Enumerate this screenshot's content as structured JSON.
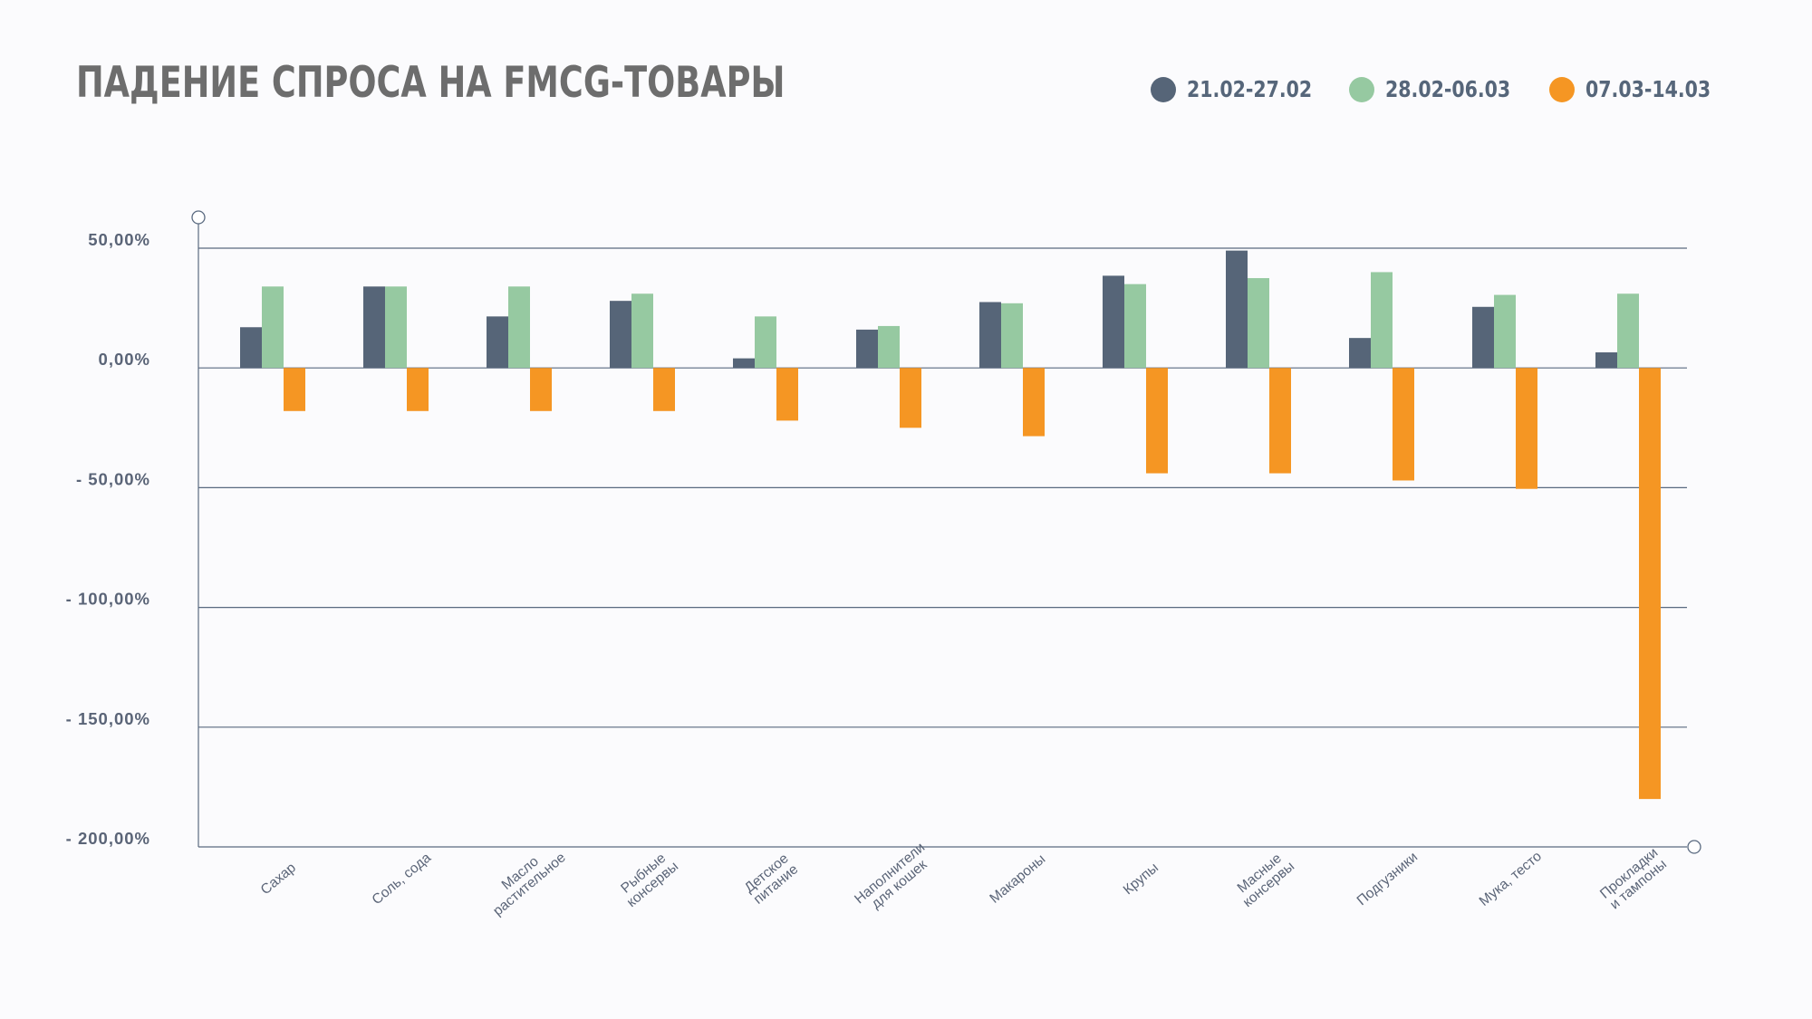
{
  "title": "ПАДЕНИЕ СПРОСА НА FMCG-ТОВАРЫ",
  "colors": {
    "series_1": "#566578",
    "series_2": "#96c9a1",
    "series_3": "#f59623",
    "axis": "#5a6a80",
    "background": "#fbfbfd"
  },
  "legend": [
    {
      "label": "21.02-27.02",
      "color": "#566578"
    },
    {
      "label": "28.02-06.03",
      "color": "#96c9a1"
    },
    {
      "label": "07.03-14.03",
      "color": "#f59623"
    }
  ],
  "chart_data": {
    "type": "bar",
    "title": "ПАДЕНИЕ СПРОСА НА FMCG-ТОВАРЫ",
    "xlabel": "",
    "ylabel": "",
    "ylim": [
      -200,
      50
    ],
    "y_ticks": [
      50,
      0,
      -50,
      -100,
      -150,
      -200
    ],
    "y_tick_labels": [
      "50,00%",
      "0,00%",
      "- 50,00%",
      "- 100,00%",
      "- 150,00%",
      "- 200,00%"
    ],
    "grid": true,
    "legend_position": "top-right",
    "categories": [
      [
        "Сахар"
      ],
      [
        "Соль, сода"
      ],
      [
        "Масло",
        "растительное"
      ],
      [
        "Рыбные",
        "консервы"
      ],
      [
        "Детское",
        "питание"
      ],
      [
        "Наполнители",
        "для кошек"
      ],
      [
        "Макароны"
      ],
      [
        "Крупы"
      ],
      [
        "Масные",
        "консервы"
      ],
      [
        "Подгузники"
      ],
      [
        "Мука, тесто"
      ],
      [
        "Прокладки",
        "и тампоны"
      ]
    ],
    "series": [
      {
        "name": "21.02-27.02",
        "color": "#566578",
        "values": [
          17,
          34,
          21.5,
          28,
          4,
          16,
          27.5,
          38.5,
          49,
          12.5,
          25.5,
          6.5
        ]
      },
      {
        "name": "28.02-06.03",
        "color": "#96c9a1",
        "values": [
          34,
          34,
          34,
          31,
          21.5,
          17.5,
          27,
          35,
          37.5,
          40,
          30.5,
          31
        ]
      },
      {
        "name": "07.03-14.03",
        "color": "#f59623",
        "values": [
          -18,
          -18,
          -18,
          -18,
          -22,
          -25,
          -28.5,
          -44,
          -44,
          -47,
          -50.5,
          -180
        ]
      }
    ]
  }
}
